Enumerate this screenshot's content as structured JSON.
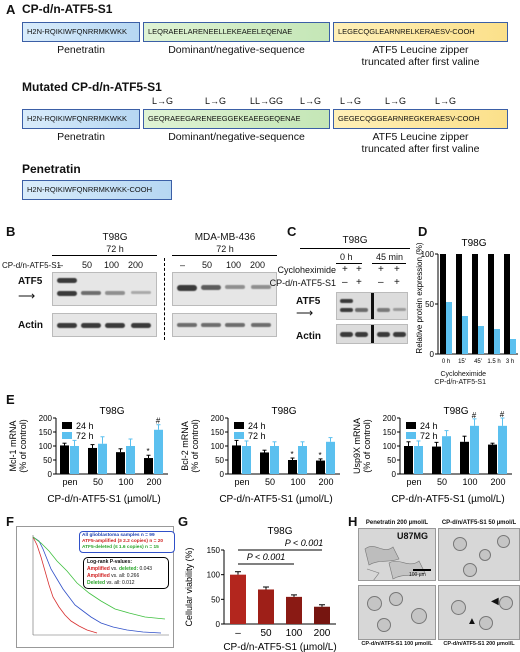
{
  "panel_a": {
    "label": "A",
    "s1_title": "CP-d/n-ATF5-S1",
    "s1_pen": "H2N-RQIKIWFQNRRMKWKK",
    "s1_dn": "LEQRAEELARENEELLEKEAEELEQENAE",
    "s1_lz": "LEGECQGLEARNRELKERAESV-COOH",
    "cap_pen": "Penetratin",
    "cap_dn": "Dominant/negative-sequence",
    "cap_lz1": "ATF5 Leucine zipper",
    "cap_lz2": "truncated after first valine",
    "mut_title": "Mutated CP-d/n-ATF5-S1",
    "mut_pen": "H2N-RQIKIWFQNRRMKWKK",
    "mut_dn": "GEQRAEEGARENEEGGEKEAEEGEQENAE",
    "mut_lz": "GEGECQGGEARNREGKERAESV-COOH",
    "arrows": [
      "L→G",
      "L→G",
      "LL→GG",
      "L→G",
      "L→G",
      "L→G",
      "L→G"
    ],
    "pen_title": "Penetratin",
    "pen_seq": "H2N-RQIKIWFQNRRMKWKK-COOH"
  },
  "panel_b": {
    "label": "B",
    "left_cell": "T98G",
    "left_time": "72 h",
    "right_cell": "MDA-MB-436",
    "right_time": "72 h",
    "treatment": "CP-d/n-ATF5-S1",
    "doses": [
      "–",
      "50",
      "100",
      "200"
    ],
    "row1": "ATF5",
    "row2": "Actin"
  },
  "panel_c": {
    "label": "C",
    "cell": "T98G",
    "t0": "0 h",
    "t45": "45 min",
    "row_chx": "Cycloheximide",
    "row_cp": "CP-d/n-ATF5-S1",
    "chx_signs": [
      "+",
      "+",
      "+",
      "+"
    ],
    "cp_signs": [
      "–",
      "+",
      "–",
      "+"
    ],
    "blot1": "ATF5",
    "blot2": "Actin"
  },
  "panel_d": {
    "label": "D",
    "cell": "T98G",
    "ylabel": "Relative protein expression (%)",
    "row_chx": "Cycloheximide",
    "row_cp": "CP-d/n-ATF5-S1"
  },
  "panel_e": {
    "label": "E",
    "xlabel": "CP-d/n-ATF5-S1 (µmol/L)",
    "legend": [
      "24 h",
      "72 h"
    ]
  },
  "panel_f": {
    "label": "F",
    "legend1": "All glioblastoma samples n = 99",
    "legend2": "ATF5-amplified (≥ 2.2 copies) n = 20",
    "legend3": "ATF5-deleted (≤ 1.6 copies) n = 15",
    "logrank_title": "Log-rank P-values:",
    "lr1_a": "Amplified",
    "lr1_b": "vs.",
    "lr1_c": "deleted:",
    "lr1_v": "0.043",
    "lr2_a": "Amplified",
    "lr2_b": "vs. all:",
    "lr2_v": "0.266",
    "lr3_a": "Deleted",
    "lr3_b": "vs. all:",
    "lr3_v": "0.012"
  },
  "panel_g": {
    "label": "G",
    "cell": "T98G",
    "p1": "P < 0.001",
    "p2": "P < 0.001"
  },
  "panel_h": {
    "label": "H",
    "cap1": "Penetratin 200 µmol/L",
    "cap2": "CP-d/n/ATF5-S1 50 µmol/L",
    "cell": "U87MG",
    "scale": "100 µm",
    "cap3": "CP-d/n/ATF5-S1 100 µmol/L",
    "cap4": "CP-d/n/ATF5-S1 200 µmol/L"
  },
  "colors": {
    "black_bar": "#000000",
    "blue_bar": "#5bc0ef",
    "box_border": "#3b5fa6"
  },
  "chart_data": [
    {
      "type": "bar",
      "id": "D",
      "title": "T98G",
      "categories": [
        "0 h",
        "15'",
        "45'",
        "1.5 h",
        "3 h"
      ],
      "series": [
        {
          "name": "Cycloheximide",
          "values": [
            100,
            100,
            100,
            100,
            100
          ]
        },
        {
          "name": "Cycloheximide + CP-d/n-ATF5-S1",
          "values": [
            52,
            38,
            28,
            25,
            15
          ]
        }
      ],
      "ylabel": "Relative protein expression (%)",
      "ylim": [
        0,
        100
      ],
      "yticks": [
        0,
        50,
        100
      ]
    },
    {
      "type": "bar",
      "id": "E1",
      "title": "T98G",
      "categories": [
        "pen",
        "50",
        "100",
        "200"
      ],
      "series": [
        {
          "name": "24 h",
          "values": [
            102,
            93,
            78,
            57
          ],
          "errors": [
            8,
            12,
            12,
            10
          ]
        },
        {
          "name": "72 h",
          "values": [
            100,
            108,
            100,
            158
          ],
          "errors": [
            20,
            25,
            25,
            18
          ]
        }
      ],
      "ylabel": "Mcl-1 mRNA (% of control)",
      "xlabel": "CP-d/n-ATF5-S1 (µmol/L)",
      "ylim": [
        0,
        200
      ],
      "yticks": [
        0,
        50,
        100,
        150,
        200
      ],
      "marks": [
        "",
        "",
        "",
        "* #"
      ]
    },
    {
      "type": "bar",
      "id": "E2",
      "title": "T98G",
      "categories": [
        "pen",
        "50",
        "100",
        "200"
      ],
      "series": [
        {
          "name": "24 h",
          "values": [
            102,
            77,
            50,
            48
          ],
          "errors": [
            18,
            8,
            7,
            6
          ]
        },
        {
          "name": "72 h",
          "values": [
            100,
            100,
            100,
            115
          ],
          "errors": [
            18,
            15,
            15,
            15
          ]
        }
      ],
      "ylabel": "Bcl-2 mRNA (% of control)",
      "xlabel": "CP-d/n-ATF5-S1 (µmol/L)",
      "ylim": [
        0,
        200
      ],
      "yticks": [
        0,
        50,
        100,
        150,
        200
      ],
      "marks": [
        "",
        "",
        "*",
        "*"
      ]
    },
    {
      "type": "bar",
      "id": "E3",
      "title": "T98G",
      "categories": [
        "pen",
        "50",
        "100",
        "200"
      ],
      "series": [
        {
          "name": "24 h",
          "values": [
            100,
            98,
            115,
            105
          ],
          "errors": [
            15,
            15,
            20,
            5
          ]
        },
        {
          "name": "72 h",
          "values": [
            100,
            135,
            172,
            172
          ],
          "errors": [
            18,
            20,
            25,
            28
          ]
        }
      ],
      "ylabel": "Usp9X mRNA (% of control)",
      "xlabel": "CP-d/n-ATF5-S1 (µmol/L)",
      "ylim": [
        0,
        200
      ],
      "yticks": [
        0,
        50,
        100,
        150,
        200
      ],
      "marks": [
        "",
        "",
        "#",
        "#"
      ]
    },
    {
      "type": "bar",
      "id": "G",
      "title": "T98G",
      "categories": [
        "–",
        "50",
        "100",
        "200"
      ],
      "values": [
        100,
        70,
        55,
        35
      ],
      "errors": [
        6,
        5,
        4,
        4
      ],
      "ylabel": "Cellular viability (%)",
      "xlabel": "CP-d/n-ATF5-S1 (µmol/L)",
      "ylim": [
        0,
        150
      ],
      "yticks": [
        0,
        50,
        100,
        150
      ]
    }
  ]
}
